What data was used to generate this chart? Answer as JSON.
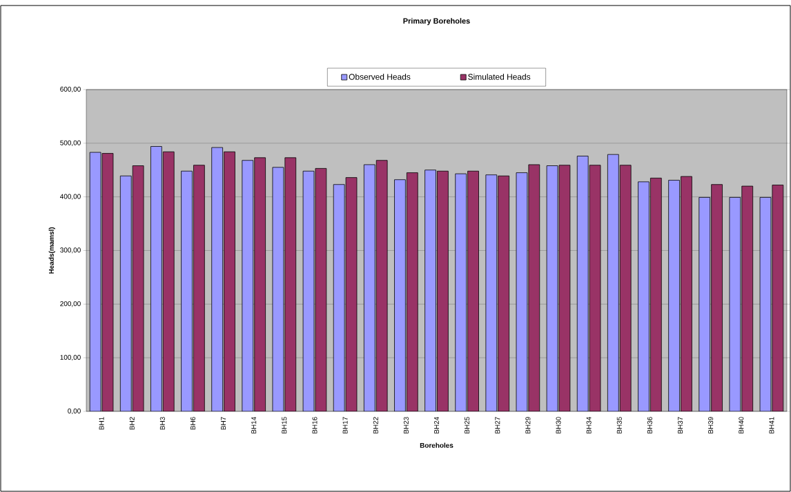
{
  "chart_data": {
    "type": "bar",
    "title": "Primary Boreholes",
    "xlabel": "Boreholes",
    "ylabel": "Heads(mamsl)",
    "categories": [
      "BH1",
      "BH2",
      "BH3",
      "BH6",
      "BH7",
      "BH14",
      "BH15",
      "BH16",
      "BH17",
      "BH22",
      "BH23",
      "BH24",
      "BH25",
      "BH27",
      "BH29",
      "BH30",
      "BH34",
      "BH35",
      "BH36",
      "BH37",
      "BH39",
      "BH40",
      "BH41"
    ],
    "series": [
      {
        "name": "Observed Heads",
        "color": "#9999ff",
        "values": [
          483,
          439,
          494,
          448,
          492,
          468,
          455,
          448,
          423,
          460,
          432,
          450,
          443,
          441,
          445,
          458,
          476,
          479,
          428,
          431,
          399,
          399,
          399
        ]
      },
      {
        "name": "Simulated  Heads",
        "color": "#993366",
        "values": [
          481,
          458,
          484,
          459,
          484,
          473,
          473,
          453,
          436,
          468,
          445,
          448,
          448,
          439,
          460,
          459,
          459,
          459,
          435,
          438,
          423,
          420,
          422
        ]
      }
    ],
    "ylim": [
      0,
      600
    ],
    "yticks": [
      {
        "value": 0,
        "label": "0,00"
      },
      {
        "value": 100,
        "label": "100,00"
      },
      {
        "value": 200,
        "label": "200,00"
      },
      {
        "value": 300,
        "label": "300,00"
      },
      {
        "value": 400,
        "label": "400,00"
      },
      {
        "value": 500,
        "label": "500,00"
      },
      {
        "value": 600,
        "label": "600,00"
      }
    ],
    "grid": "y",
    "legend": "top"
  }
}
